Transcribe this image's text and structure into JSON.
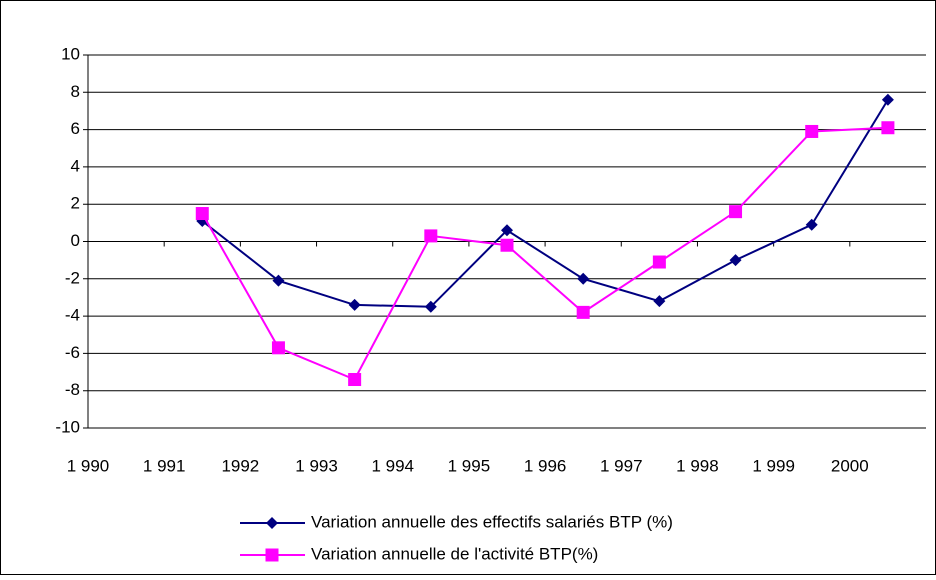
{
  "chart_data": {
    "type": "line",
    "categories": [
      "1 990",
      "1 991",
      "1992",
      "1 993",
      "1 994",
      "1 995",
      "1 996",
      "1 997",
      "1 998",
      "1 999",
      "2000"
    ],
    "series": [
      {
        "name": "Variation annuelle des effectifs salariés BTP (%)",
        "color": "#000080",
        "marker": "diamond",
        "values": [
          null,
          1.1,
          -2.1,
          -3.4,
          -3.5,
          0.6,
          -2.0,
          -3.2,
          -1.0,
          0.9,
          7.6
        ]
      },
      {
        "name": "Variation annuelle de l'activité BTP(%)",
        "color": "#ff00ff",
        "marker": "square",
        "values": [
          null,
          1.5,
          -5.7,
          -7.4,
          0.3,
          -0.2,
          -3.8,
          -1.1,
          1.6,
          5.9,
          6.1
        ]
      }
    ],
    "ylim": [
      -10,
      10
    ],
    "yticks": [
      -10,
      -8,
      -6,
      -4,
      -2,
      0,
      2,
      4,
      6,
      8,
      10
    ],
    "grid": true
  }
}
